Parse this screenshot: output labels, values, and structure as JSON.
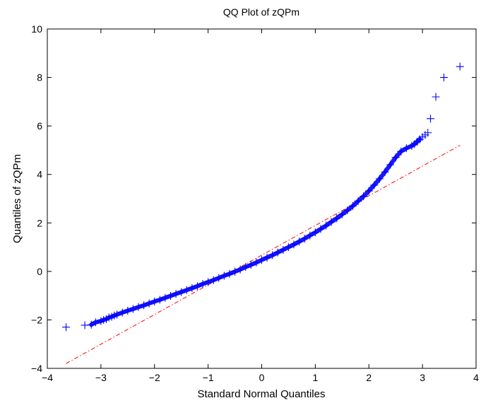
{
  "chart_data": {
    "type": "scatter",
    "title": "QQ Plot of zQPm",
    "xlabel": "Standard Normal Quantiles",
    "ylabel": "Quantiles of zQPm",
    "xlim": [
      -4,
      4
    ],
    "ylim": [
      -4,
      10
    ],
    "xticks": [
      -4,
      -3,
      -2,
      -1,
      0,
      1,
      2,
      3,
      4
    ],
    "yticks": [
      -4,
      -2,
      0,
      2,
      4,
      6,
      8,
      10
    ],
    "xtick_labels": [
      "−4",
      "−3",
      "−2",
      "−1",
      "0",
      "1",
      "2",
      "3",
      "4"
    ],
    "ytick_labels": [
      "−4",
      "−2",
      "0",
      "2",
      "4",
      "6",
      "8",
      "10"
    ],
    "grid": false,
    "legend": "none",
    "series": [
      {
        "marker": "plus",
        "color": "#0000ff",
        "x": [
          -3.65,
          -3.3,
          -3.18,
          -3.1,
          -3.0,
          -2.95,
          -2.9,
          -2.85,
          -2.8,
          -2.75,
          -2.7,
          -2.6,
          -2.5,
          -2.4,
          -2.3,
          -2.2,
          -2.1,
          -2.0,
          -1.9,
          -1.8,
          -1.7,
          -1.6,
          -1.5,
          -1.4,
          -1.3,
          -1.2,
          -1.1,
          -1.0,
          -0.9,
          -0.8,
          -0.7,
          -0.6,
          -0.5,
          -0.4,
          -0.3,
          -0.2,
          -0.1,
          0.0,
          0.1,
          0.2,
          0.3,
          0.4,
          0.5,
          0.6,
          0.7,
          0.8,
          0.9,
          1.0,
          1.1,
          1.2,
          1.3,
          1.4,
          1.5,
          1.6,
          1.7,
          1.8,
          1.9,
          2.0,
          2.1,
          2.2,
          2.3,
          2.4,
          2.5,
          2.6,
          2.7,
          2.8,
          2.85,
          2.9,
          2.95,
          3.0,
          3.05,
          3.1,
          3.15,
          3.25,
          3.4,
          3.7
        ],
        "y": [
          -2.3,
          -2.22,
          -2.2,
          -2.1,
          -2.05,
          -2.0,
          -1.97,
          -1.9,
          -1.87,
          -1.82,
          -1.78,
          -1.7,
          -1.62,
          -1.55,
          -1.47,
          -1.4,
          -1.32,
          -1.24,
          -1.17,
          -1.09,
          -1.01,
          -0.93,
          -0.85,
          -0.77,
          -0.69,
          -0.61,
          -0.52,
          -0.44,
          -0.36,
          -0.27,
          -0.18,
          -0.1,
          -0.01,
          0.08,
          0.18,
          0.27,
          0.37,
          0.47,
          0.57,
          0.67,
          0.78,
          0.89,
          1.0,
          1.11,
          1.23,
          1.35,
          1.48,
          1.61,
          1.75,
          1.89,
          2.04,
          2.19,
          2.35,
          2.52,
          2.7,
          2.9,
          3.1,
          3.32,
          3.56,
          3.82,
          4.1,
          4.4,
          4.7,
          4.95,
          5.08,
          5.18,
          5.25,
          5.35,
          5.45,
          5.55,
          5.63,
          5.72,
          6.3,
          7.2,
          8.0,
          8.45
        ]
      },
      {
        "type": "reference_line",
        "style": "dash-dot",
        "color": "#ff0000",
        "x": [
          -3.65,
          3.7
        ],
        "y": [
          -3.8,
          5.2
        ]
      }
    ]
  }
}
